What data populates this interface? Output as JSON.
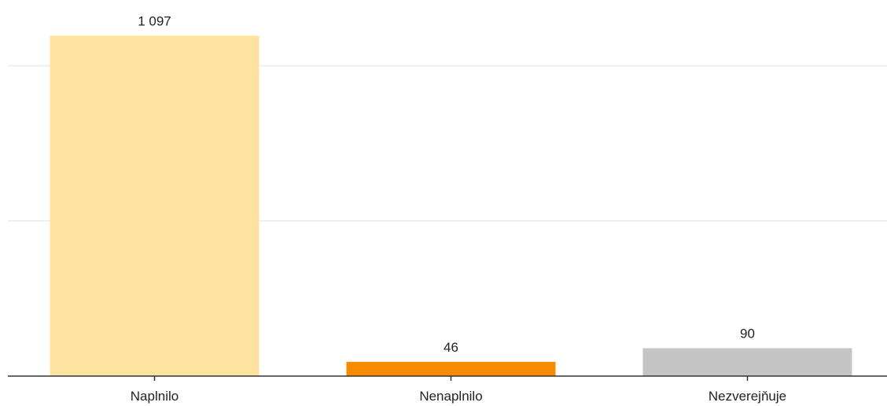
{
  "chart_data": {
    "type": "bar",
    "title": "",
    "xlabel": "",
    "ylabel": "",
    "categories": [
      "Naplnilo",
      "Nenaplnilo",
      "Nezverejňuje"
    ],
    "values": [
      1097,
      46,
      90
    ],
    "value_labels": [
      "1 097",
      "46",
      "90"
    ],
    "colors": [
      "#fde39f",
      "#f78c00",
      "#c4c4c4"
    ],
    "ylim": [
      0,
      1100
    ],
    "gridlines": [
      0,
      500,
      1000
    ],
    "grid": true,
    "legend": "none"
  }
}
